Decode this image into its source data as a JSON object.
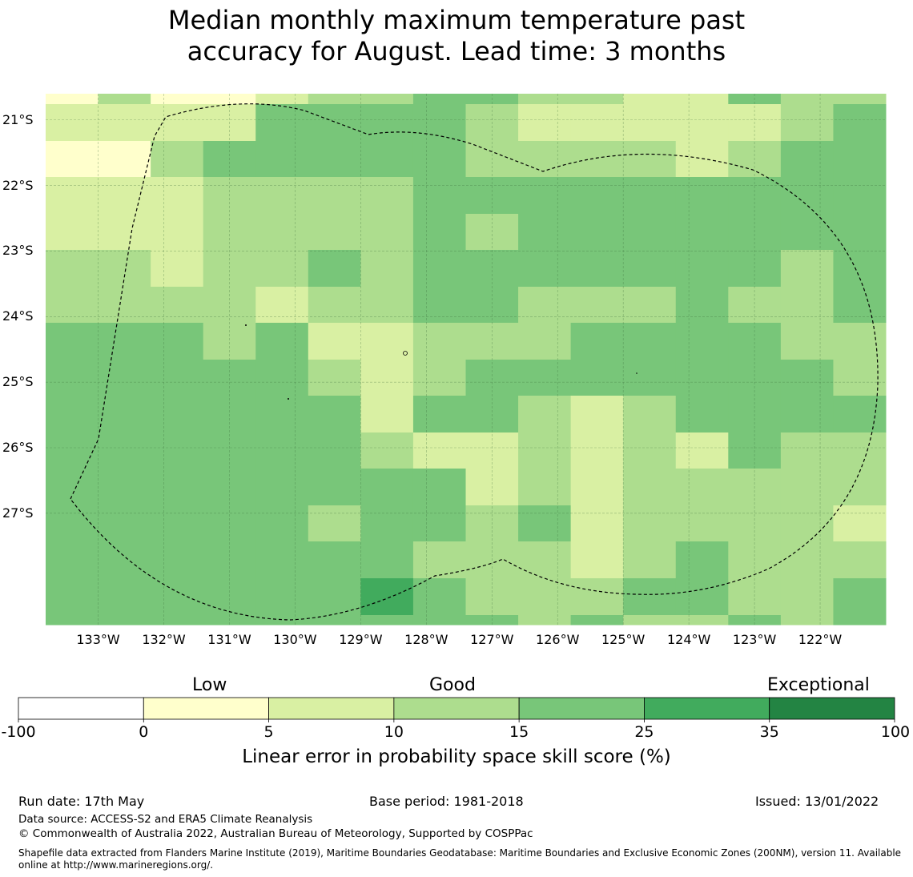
{
  "title_lines": [
    "Median monthly maximum temperature past",
    "accuracy for August. Lead time: 3 months"
  ],
  "map": {
    "lat_labels": [
      "21°S",
      "22°S",
      "23°S",
      "24°S",
      "25°S",
      "26°S",
      "27°S"
    ],
    "lat_values": [
      -21,
      -22,
      -23,
      -24,
      -25,
      -26,
      -27
    ],
    "lon_labels": [
      "133°W",
      "132°W",
      "131°W",
      "130°W",
      "129°W",
      "128°W",
      "127°W",
      "126°W",
      "125°W",
      "124°W",
      "123°W",
      "122°W"
    ],
    "lon_values": [
      -133,
      -132,
      -131,
      -130,
      -129,
      -128,
      -127,
      -126,
      -125,
      -124,
      -123,
      -122
    ],
    "extent_lon": [
      -133.8,
      -121.0
    ],
    "extent_lat": [
      -20.6,
      -28.7
    ],
    "skill_grid": [
      [
        1,
        3,
        1,
        1,
        2,
        3,
        3,
        4,
        4,
        3,
        3,
        2,
        2,
        4,
        3,
        3
      ],
      [
        2,
        2,
        2,
        2,
        4,
        4,
        4,
        4,
        3,
        2,
        2,
        2,
        2,
        2,
        3,
        4
      ],
      [
        1,
        1,
        3,
        4,
        4,
        4,
        4,
        4,
        3,
        3,
        3,
        3,
        2,
        3,
        4,
        4
      ],
      [
        2,
        2,
        2,
        3,
        3,
        3,
        3,
        4,
        4,
        4,
        4,
        4,
        4,
        4,
        4,
        4
      ],
      [
        2,
        2,
        2,
        3,
        3,
        3,
        3,
        4,
        3,
        4,
        4,
        4,
        4,
        4,
        4,
        4
      ],
      [
        3,
        3,
        2,
        3,
        3,
        4,
        3,
        4,
        4,
        4,
        4,
        4,
        4,
        4,
        3,
        4
      ],
      [
        3,
        3,
        3,
        3,
        2,
        3,
        3,
        4,
        4,
        3,
        3,
        3,
        4,
        3,
        3,
        4
      ],
      [
        4,
        4,
        4,
        3,
        4,
        2,
        2,
        3,
        3,
        3,
        4,
        4,
        4,
        4,
        3,
        3
      ],
      [
        4,
        4,
        4,
        4,
        4,
        3,
        2,
        3,
        4,
        4,
        4,
        4,
        4,
        4,
        4,
        3
      ],
      [
        4,
        4,
        4,
        4,
        4,
        4,
        2,
        4,
        4,
        3,
        2,
        3,
        4,
        4,
        4,
        4
      ],
      [
        4,
        4,
        4,
        4,
        4,
        4,
        3,
        2,
        2,
        3,
        2,
        3,
        2,
        4,
        3,
        3
      ],
      [
        4,
        4,
        4,
        4,
        4,
        4,
        4,
        4,
        2,
        3,
        2,
        3,
        3,
        3,
        3,
        3
      ],
      [
        4,
        4,
        4,
        4,
        4,
        3,
        4,
        4,
        3,
        4,
        2,
        3,
        3,
        3,
        3,
        2
      ],
      [
        4,
        4,
        4,
        4,
        4,
        4,
        4,
        3,
        3,
        3,
        2,
        3,
        4,
        3,
        3,
        3
      ],
      [
        4,
        4,
        4,
        4,
        4,
        4,
        5,
        4,
        3,
        3,
        3,
        4,
        4,
        3,
        3,
        4
      ],
      [
        4,
        4,
        4,
        4,
        4,
        4,
        4,
        4,
        4,
        3,
        4,
        3,
        3,
        4,
        3,
        4
      ]
    ]
  },
  "colorbar": {
    "category_labels": [
      "Low",
      "Good",
      "Exceptional"
    ],
    "ticks": [
      "-100",
      "0",
      "5",
      "10",
      "15",
      "25",
      "35",
      "100"
    ],
    "colors": [
      "#ffffff",
      "#ffffcc",
      "#d9f0a3",
      "#addd8e",
      "#78c679",
      "#41ab5d",
      "#238443"
    ],
    "title": "Linear error in probability space skill score (%)"
  },
  "footer": {
    "run_date": "Run date: 17th May",
    "base_period": "Base period: 1981-2018",
    "issued": "Issued: 13/01/2022",
    "data_source": "Data source: ACCESS-S2 and ERA5 Climate Reanalysis",
    "copyright": "© Commonwealth of Australia 2022, Australian Bureau of Meteorology, Supported by COSPPac",
    "shapefile_line1": "Shapefile data extracted from Flanders Marine Institute (2019), Maritime Boundaries Geodatabase: Maritime Boundaries and Exclusive Economic Zones (200NM), version 11. Available",
    "shapefile_line2": "online at http://www.marineregions.org/."
  }
}
